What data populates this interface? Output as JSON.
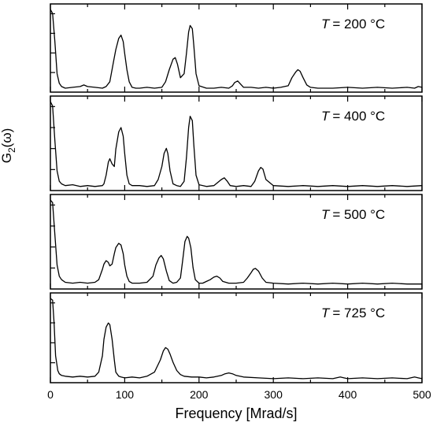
{
  "chart_data": {
    "type": "line",
    "ylabel": "G",
    "ylabel_subscript": "2",
    "ylabel_suffix": "(ω)",
    "xlabel": "Frequency [Mrad/s]",
    "xlim": [
      0,
      500
    ],
    "x_ticks": [
      "0",
      "100",
      "200",
      "300",
      "400",
      "500"
    ],
    "panels": [
      {
        "label_var": "T",
        "label_value": "= 200 °C",
        "series": [
          {
            "x": [
              0,
              3,
              6,
              9,
              12,
              15,
              20,
              30,
              40,
              45,
              50,
              60,
              70,
              75,
              80,
              85,
              88,
              92,
              95,
              98,
              100,
              103,
              106,
              110,
              115,
              120,
              130,
              140,
              150,
              155,
              160,
              165,
              168,
              171,
              175,
              180,
              183,
              186,
              188,
              191,
              193,
              196,
              200,
              210,
              220,
              230,
              240,
              245,
              248,
              252,
              256,
              260,
              270,
              280,
              290,
              300,
              310,
              320,
              325,
              330,
              333,
              336,
              340,
              345,
              350,
              360,
              380,
              400,
              420,
              440,
              460,
              480,
              490,
              495,
              500
            ],
            "y": [
              1.0,
              0.95,
              0.6,
              0.2,
              0.08,
              0.04,
              0.02,
              0.03,
              0.04,
              0.06,
              0.04,
              0.03,
              0.02,
              0.04,
              0.1,
              0.35,
              0.5,
              0.64,
              0.68,
              0.6,
              0.45,
              0.25,
              0.1,
              0.03,
              0.02,
              0.02,
              0.03,
              0.02,
              0.03,
              0.1,
              0.25,
              0.38,
              0.4,
              0.32,
              0.15,
              0.2,
              0.45,
              0.72,
              0.8,
              0.76,
              0.55,
              0.2,
              0.05,
              0.02,
              0.02,
              0.03,
              0.02,
              0.05,
              0.09,
              0.11,
              0.07,
              0.03,
              0.03,
              0.02,
              0.03,
              0.02,
              0.03,
              0.05,
              0.15,
              0.22,
              0.25,
              0.23,
              0.15,
              0.06,
              0.03,
              0.02,
              0.02,
              0.03,
              0.02,
              0.03,
              0.02,
              0.03,
              0.02,
              0.04,
              0.03
            ]
          }
        ]
      },
      {
        "label_var": "T",
        "label_value": "= 400 °C",
        "series": [
          {
            "x": [
              0,
              3,
              6,
              9,
              12,
              15,
              20,
              30,
              40,
              50,
              60,
              70,
              72,
              75,
              78,
              80,
              83,
              86,
              88,
              92,
              95,
              98,
              100,
              103,
              106,
              110,
              120,
              130,
              140,
              145,
              150,
              153,
              156,
              158,
              161,
              165,
              170,
              175,
              180,
              183,
              186,
              188,
              191,
              193,
              196,
              200,
              210,
              220,
              230,
              234,
              238,
              242,
              250,
              260,
              270,
              275,
              280,
              283,
              286,
              290,
              300,
              320,
              340,
              360,
              380,
              400,
              420,
              440,
              460,
              480,
              500
            ],
            "y": [
              1.0,
              0.95,
              0.55,
              0.2,
              0.08,
              0.05,
              0.03,
              0.04,
              0.02,
              0.03,
              0.02,
              0.03,
              0.05,
              0.15,
              0.3,
              0.34,
              0.28,
              0.25,
              0.45,
              0.65,
              0.7,
              0.6,
              0.4,
              0.15,
              0.05,
              0.03,
              0.03,
              0.02,
              0.03,
              0.1,
              0.25,
              0.4,
              0.46,
              0.4,
              0.2,
              0.05,
              0.03,
              0.02,
              0.08,
              0.35,
              0.7,
              0.83,
              0.78,
              0.5,
              0.15,
              0.04,
              0.02,
              0.03,
              0.1,
              0.12,
              0.08,
              0.03,
              0.02,
              0.03,
              0.02,
              0.08,
              0.2,
              0.24,
              0.22,
              0.1,
              0.03,
              0.02,
              0.03,
              0.02,
              0.03,
              0.02,
              0.03,
              0.02,
              0.03,
              0.02,
              0.03
            ]
          }
        ]
      },
      {
        "label_var": "T",
        "label_value": "= 500 °C",
        "series": [
          {
            "x": [
              0,
              3,
              6,
              9,
              12,
              15,
              20,
              30,
              40,
              50,
              60,
              65,
              70,
              72,
              75,
              78,
              80,
              83,
              86,
              88,
              92,
              95,
              98,
              100,
              103,
              106,
              110,
              120,
              130,
              138,
              142,
              146,
              149,
              152,
              156,
              160,
              165,
              170,
              175,
              178,
              181,
              184,
              186,
              189,
              192,
              195,
              200,
              205,
              210,
              215,
              220,
              224,
              228,
              232,
              240,
              250,
              260,
              265,
              270,
              273,
              276,
              280,
              285,
              290,
              300,
              320,
              340,
              360,
              380,
              400,
              420,
              440,
              460,
              480,
              500
            ],
            "y": [
              1.0,
              0.97,
              0.6,
              0.25,
              0.12,
              0.08,
              0.05,
              0.04,
              0.05,
              0.04,
              0.05,
              0.08,
              0.2,
              0.26,
              0.3,
              0.28,
              0.24,
              0.26,
              0.38,
              0.45,
              0.5,
              0.48,
              0.38,
              0.25,
              0.12,
              0.06,
              0.04,
              0.04,
              0.05,
              0.12,
              0.25,
              0.33,
              0.36,
              0.32,
              0.18,
              0.07,
              0.04,
              0.05,
              0.1,
              0.3,
              0.52,
              0.58,
              0.56,
              0.45,
              0.22,
              0.08,
              0.04,
              0.04,
              0.06,
              0.08,
              0.11,
              0.12,
              0.1,
              0.06,
              0.04,
              0.04,
              0.05,
              0.1,
              0.16,
              0.2,
              0.21,
              0.18,
              0.1,
              0.05,
              0.04,
              0.03,
              0.04,
              0.03,
              0.04,
              0.03,
              0.04,
              0.03,
              0.04,
              0.03,
              0.03
            ]
          }
        ]
      },
      {
        "label_var": "T",
        "label_value": "= 725 °C",
        "series": [
          {
            "x": [
              0,
              3,
              5,
              7,
              10,
              12,
              15,
              20,
              30,
              40,
              50,
              60,
              65,
              70,
              72,
              75,
              78,
              80,
              83,
              86,
              88,
              92,
              95,
              100,
              110,
              120,
              130,
              140,
              148,
              152,
              155,
              158,
              161,
              165,
              170,
              175,
              180,
              190,
              200,
              210,
              220,
              230,
              235,
              240,
              245,
              250,
              260,
              280,
              300,
              320,
              340,
              360,
              380,
              390,
              395,
              400,
              420,
              440,
              460,
              480,
              490,
              495,
              500
            ],
            "y": [
              1.0,
              0.98,
              0.7,
              0.3,
              0.12,
              0.08,
              0.06,
              0.05,
              0.04,
              0.05,
              0.04,
              0.05,
              0.1,
              0.3,
              0.5,
              0.65,
              0.7,
              0.68,
              0.5,
              0.25,
              0.1,
              0.05,
              0.04,
              0.03,
              0.04,
              0.03,
              0.05,
              0.1,
              0.25,
              0.36,
              0.4,
              0.38,
              0.32,
              0.22,
              0.12,
              0.07,
              0.05,
              0.04,
              0.04,
              0.03,
              0.04,
              0.06,
              0.08,
              0.09,
              0.08,
              0.06,
              0.04,
              0.03,
              0.02,
              0.03,
              0.02,
              0.03,
              0.02,
              0.04,
              0.03,
              0.02,
              0.03,
              0.02,
              0.03,
              0.02,
              0.04,
              0.03,
              0.02
            ]
          }
        ]
      }
    ]
  }
}
